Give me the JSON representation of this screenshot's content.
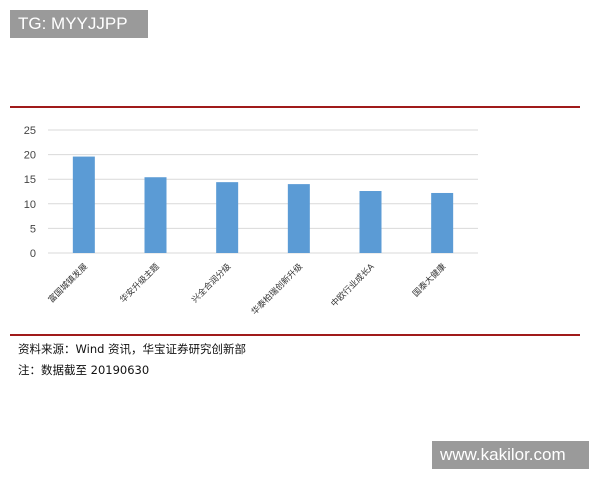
{
  "badge": "TG: MYYJJPP",
  "watermark": "www.kakilor.com",
  "source_note": "资料来源：Wind 资讯，华宝证券研究创新部",
  "date_note": "注：数据截至 20190630",
  "chart_data": {
    "type": "bar",
    "categories": [
      "富国城镇发展",
      "华安升级主题",
      "兴全合润分级",
      "华泰柏瑞创新升级",
      "中欧行业成长A",
      "国泰大健康"
    ],
    "values": [
      19.6,
      15.4,
      14.4,
      14.0,
      12.6,
      12.2
    ],
    "ylim": [
      0,
      25
    ],
    "yticks": [
      0,
      5,
      10,
      15,
      20,
      25
    ],
    "grid": true,
    "bar_color": "#5b9bd5"
  }
}
